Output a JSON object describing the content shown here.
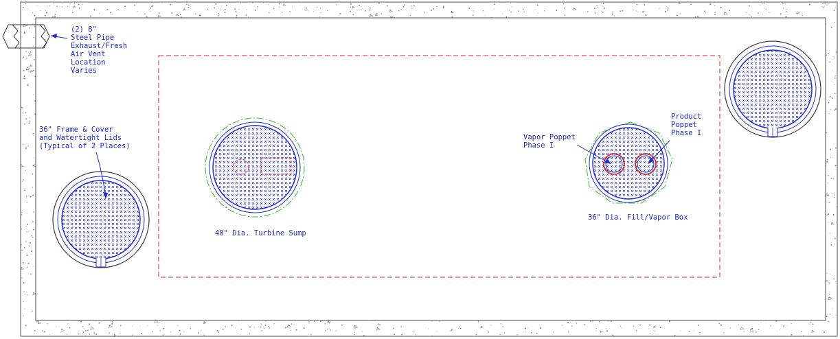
{
  "colors": {
    "blue": "#1f2ccf",
    "red": "#d42a2a",
    "green": "#2fbf2f",
    "dark": "#3a3a3a",
    "concrete": "#8a8a8a"
  },
  "labels": {
    "vent": [
      "(2) 8\"",
      "Steel Pipe",
      "Exhaust/Fresh",
      "Air Vent",
      "Location",
      "Varies"
    ],
    "frame": [
      "36\" Frame & Cover",
      "and Watertight Lids",
      "(Typical of 2 Places)"
    ],
    "turbine": "48\" Dia. Turbine Sump",
    "fill_box": "36\" Dia. Fill/Vapor Box",
    "vapor_poppet": [
      "Vapor Poppet",
      "Phase I"
    ],
    "product_poppet": [
      "Product",
      "Poppet",
      "Phase I"
    ]
  }
}
